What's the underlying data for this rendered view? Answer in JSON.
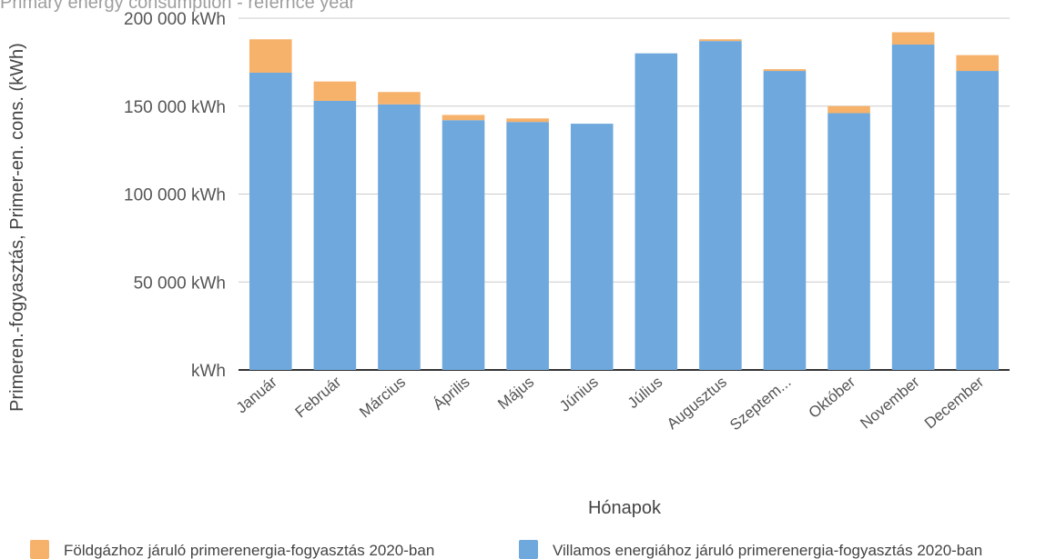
{
  "chart_data": {
    "type": "bar",
    "stacked": true,
    "title": "Primary energy consumption - refernce year",
    "xlabel": "Hónapok",
    "ylabel": "Primeren.-fogyasztás, Primer-en. cons. (kWh)",
    "ylim": [
      0,
      200000
    ],
    "yticks": [
      {
        "value": 0,
        "label": "kWh"
      },
      {
        "value": 50000,
        "label": "50 000  kWh"
      },
      {
        "value": 100000,
        "label": "100 000  kWh"
      },
      {
        "value": 150000,
        "label": "150 000  kWh"
      },
      {
        "value": 200000,
        "label": "200 000  kWh"
      }
    ],
    "categories": [
      "Január",
      "Február",
      "Március",
      "Április",
      "Május",
      "Június",
      "Július",
      "Augusztus",
      "Szeptem...",
      "Október",
      "November",
      "December"
    ],
    "series": [
      {
        "name": "Villamos energiához járuló primerenergia-fogyasztás 2020-ban",
        "color": "#6fa8dc",
        "values": [
          169000,
          153000,
          151000,
          142000,
          141000,
          140000,
          180000,
          187000,
          170000,
          146000,
          185000,
          170000
        ]
      },
      {
        "name": "Földgázhoz járuló primerenergia-fogyasztás 2020-ban",
        "color": "#f6b26b",
        "values": [
          19000,
          11000,
          7000,
          3000,
          2000,
          0,
          0,
          1000,
          1000,
          4000,
          7000,
          9000
        ]
      }
    ],
    "legend_order": [
      1,
      0
    ],
    "legend_position": "bottom",
    "grid": true
  }
}
